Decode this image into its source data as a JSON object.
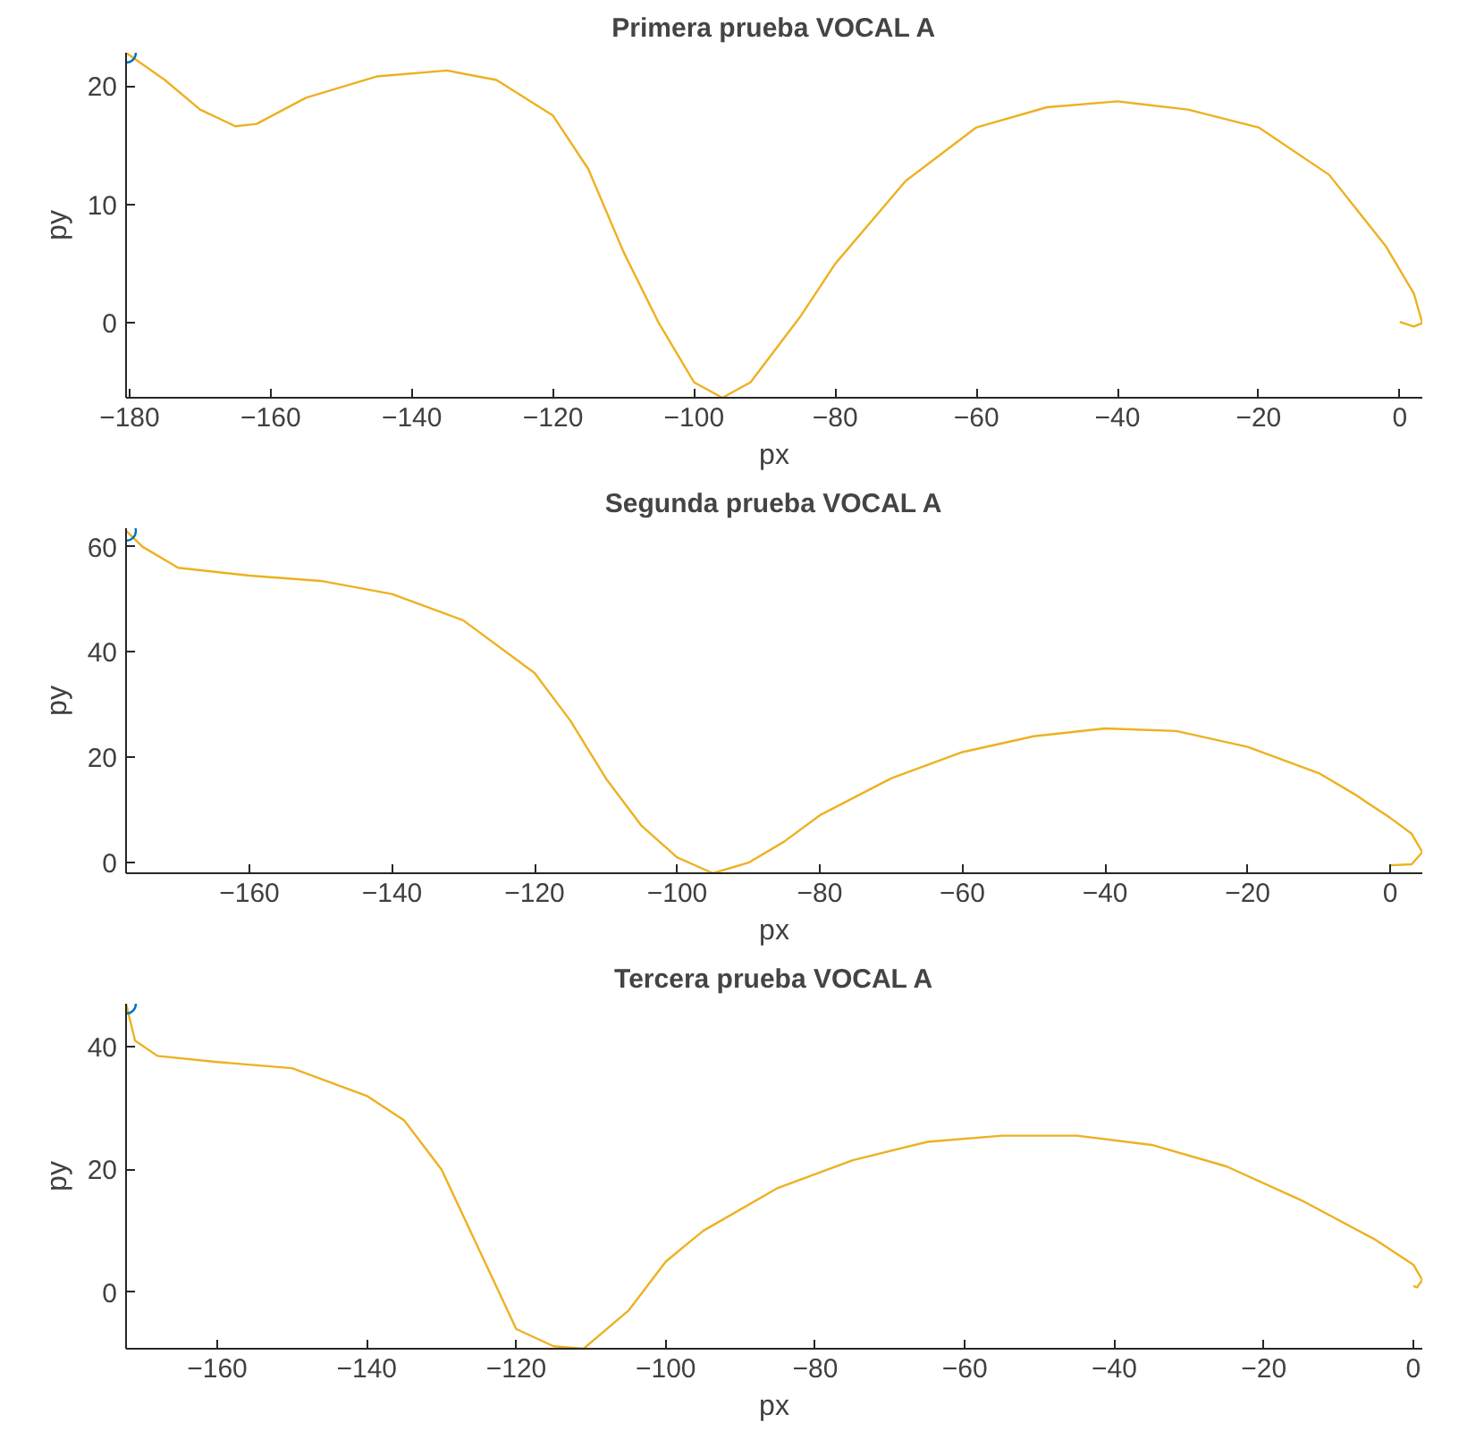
{
  "chart_data": [
    {
      "type": "line",
      "title": "Primera prueba VOCAL A",
      "xlabel": "px",
      "ylabel": "py",
      "xlim": [
        -180.5,
        3.2
      ],
      "ylim": [
        -6.3,
        22.8
      ],
      "xticks": [
        -180,
        -160,
        -140,
        -120,
        -100,
        -80,
        -60,
        -40,
        -20,
        0
      ],
      "yticks": [
        0,
        10,
        20
      ],
      "series": [
        {
          "color": "#edb120",
          "x": [
            -180.5,
            -175,
            -170,
            -165,
            -162,
            -155,
            -145,
            -135,
            -128,
            -120,
            -115,
            -110,
            -105,
            -100,
            -96,
            -92,
            -85,
            -80,
            -70,
            -60,
            -50,
            -40,
            -30,
            -20,
            -10,
            -2,
            2,
            3.2,
            2,
            0
          ],
          "values": [
            22.8,
            20.5,
            18,
            16.6,
            16.8,
            19,
            20.8,
            21.3,
            20.5,
            17.5,
            13,
            6,
            0,
            -5,
            -6.3,
            -5,
            0.5,
            5,
            12,
            16.5,
            18.2,
            18.7,
            18,
            16.5,
            12.5,
            6.5,
            2.5,
            0,
            -0.3,
            0.1
          ]
        },
        {
          "type": "scatter",
          "marker": "circle",
          "color": "#0072bd",
          "x": [
            -180.5
          ],
          "values": [
            22.8
          ]
        }
      ]
    },
    {
      "type": "line",
      "title": "Segunda prueba VOCAL A",
      "xlabel": "px",
      "ylabel": "py",
      "xlim": [
        -177.3,
        4.5
      ],
      "ylim": [
        -2,
        63.5
      ],
      "xticks": [
        -160,
        -140,
        -120,
        -100,
        -80,
        -60,
        -40,
        -20,
        0
      ],
      "yticks": [
        0,
        20,
        40,
        60
      ],
      "series": [
        {
          "color": "#edb120",
          "x": [
            -177.3,
            -175,
            -170,
            -160,
            -150,
            -140,
            -130,
            -120,
            -115,
            -110,
            -105,
            -100,
            -95,
            -90,
            -85,
            -80,
            -70,
            -60,
            -50,
            -40,
            -30,
            -20,
            -10,
            -5,
            0,
            3,
            4.5,
            3,
            0
          ],
          "values": [
            63,
            60,
            56,
            54.5,
            53.5,
            51,
            46,
            36,
            27,
            16,
            7,
            1,
            -2,
            0,
            4,
            9,
            16,
            21,
            24,
            25.5,
            25,
            22,
            17,
            13,
            8.5,
            5.5,
            2,
            -0.3,
            -0.5
          ]
        },
        {
          "type": "scatter",
          "marker": "circle",
          "color": "#0072bd",
          "x": [
            -177.3
          ],
          "values": [
            63
          ]
        }
      ]
    },
    {
      "type": "line",
      "title": "Tercera prueba VOCAL A",
      "xlabel": "px",
      "ylabel": "py",
      "xlim": [
        -172.2,
        1.2
      ],
      "ylim": [
        -9.2,
        47
      ],
      "xticks": [
        -160,
        -140,
        -120,
        -100,
        -80,
        -60,
        -40,
        -20,
        0
      ],
      "yticks": [
        0,
        20,
        40
      ],
      "series": [
        {
          "color": "#edb120",
          "x": [
            -172.2,
            -171,
            -168,
            -160,
            -150,
            -140,
            -135,
            -130,
            -125,
            -120,
            -115,
            -111,
            -105,
            -100,
            -95,
            -85,
            -75,
            -65,
            -55,
            -45,
            -35,
            -25,
            -15,
            -5,
            0,
            1.2,
            0.5,
            0
          ],
          "values": [
            47,
            41,
            38.5,
            37.5,
            36.5,
            32,
            28,
            20,
            7,
            -6,
            -8.8,
            -9.2,
            -3,
            5,
            10,
            17,
            21.5,
            24.5,
            25.5,
            25.5,
            24,
            20.5,
            15,
            8.5,
            4.5,
            2,
            0.8,
            1
          ]
        },
        {
          "type": "scatter",
          "marker": "circle",
          "color": "#0072bd",
          "x": [
            -172.2
          ],
          "values": [
            47
          ]
        }
      ]
    }
  ]
}
